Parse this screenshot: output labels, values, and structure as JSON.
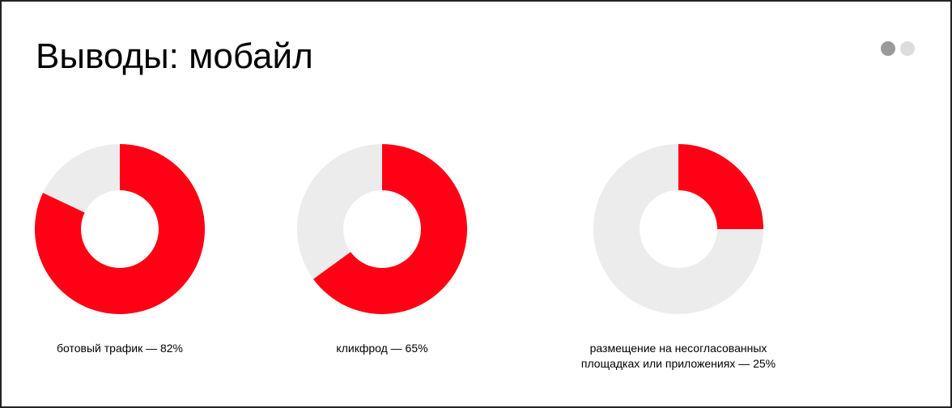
{
  "title": "Выводы: мобайл",
  "chart_data": [
    {
      "type": "donut",
      "title": [
        "ботовый трафик — 82%"
      ],
      "values": [
        82
      ],
      "color": "#ff0014",
      "track_color": "#ececec",
      "ylim": [
        0,
        100
      ]
    },
    {
      "type": "donut",
      "title": [
        "кликфрод — 65%"
      ],
      "values": [
        65
      ],
      "color": "#ff0014",
      "track_color": "#ececec",
      "ylim": [
        0,
        100
      ]
    },
    {
      "type": "donut",
      "title": [
        "размещение на несогласованных",
        "площадках или приложениях — 25%"
      ],
      "values": [
        25
      ],
      "color": "#ff0014",
      "track_color": "#ececec",
      "ylim": [
        0,
        100
      ]
    }
  ]
}
